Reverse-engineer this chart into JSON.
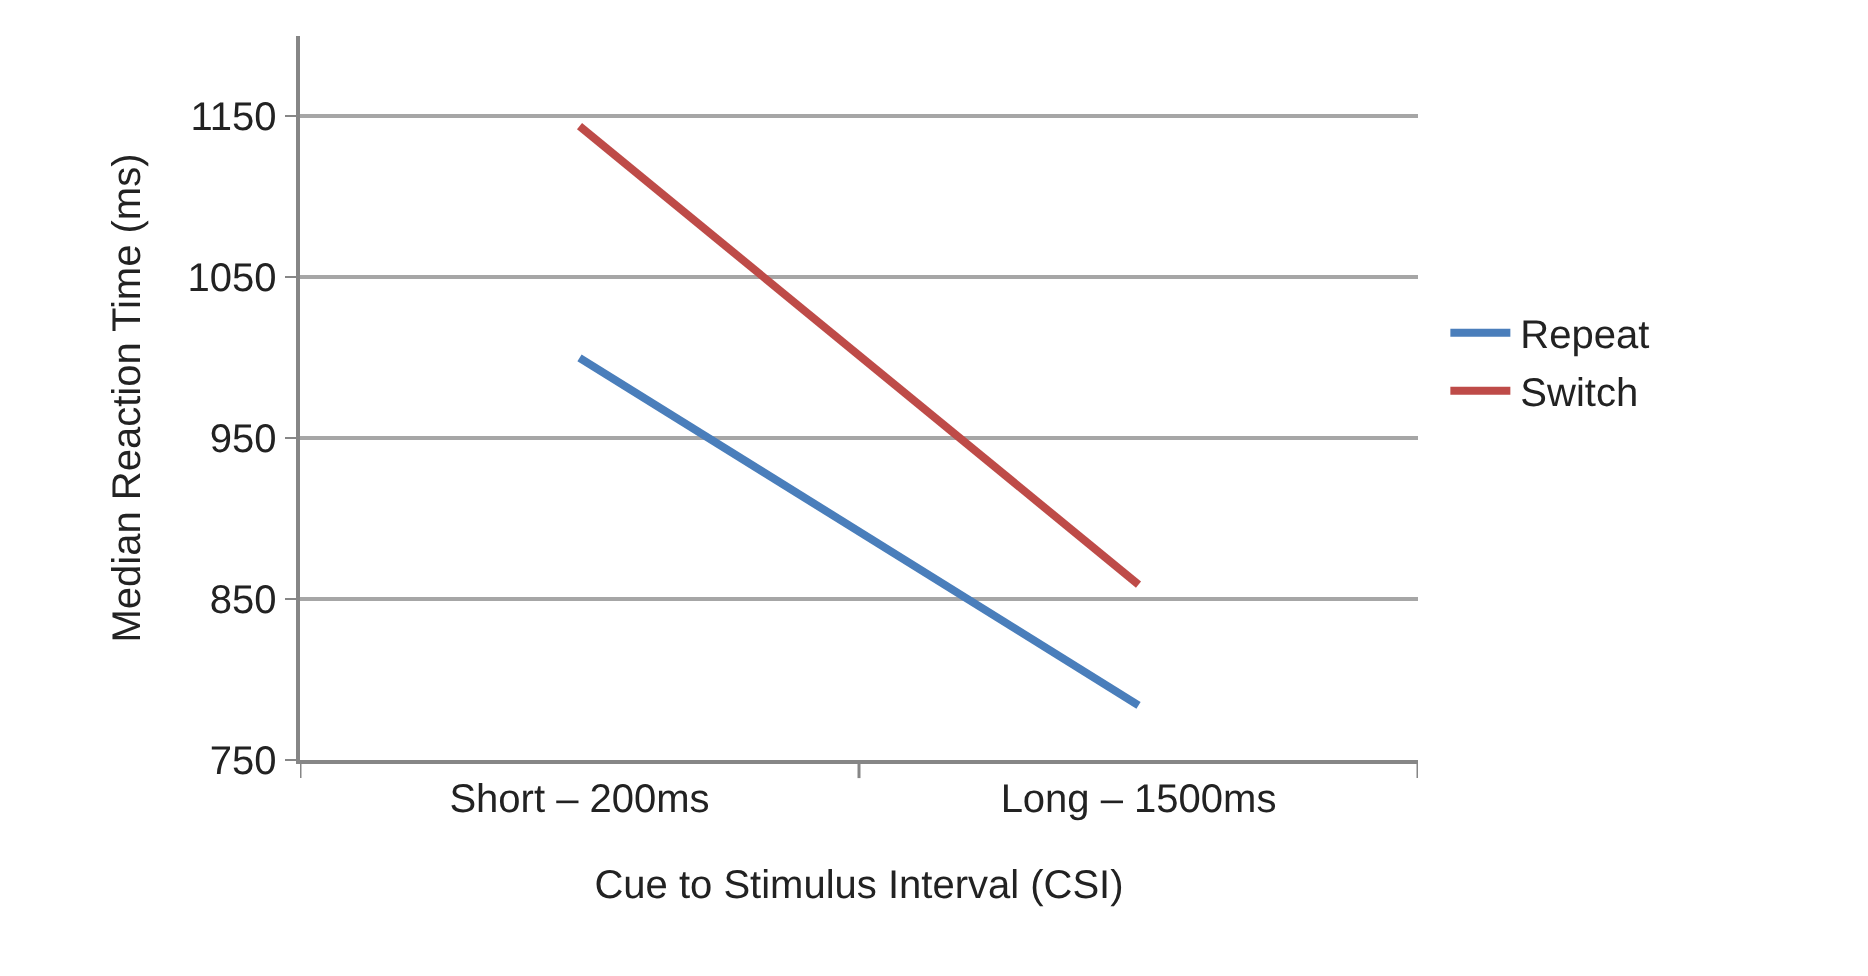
{
  "chart_data": {
    "type": "line",
    "xlabel": "Cue to Stimulus Interval (CSI)",
    "ylabel": "Median Reaction Time (ms)",
    "categories": [
      "Short – 200ms",
      "Long – 1500ms"
    ],
    "series": [
      {
        "name": "Repeat",
        "color": "#4a7ebb",
        "values": [
          1000,
          784
        ]
      },
      {
        "name": "Switch",
        "color": "#be4b48",
        "values": [
          1144,
          859
        ]
      }
    ],
    "ylim": [
      750,
      1200
    ],
    "yticks": [
      750,
      850,
      950,
      1050,
      1150
    ],
    "grid": "y",
    "legend": "right",
    "marker": "none",
    "line_style": "solid"
  }
}
